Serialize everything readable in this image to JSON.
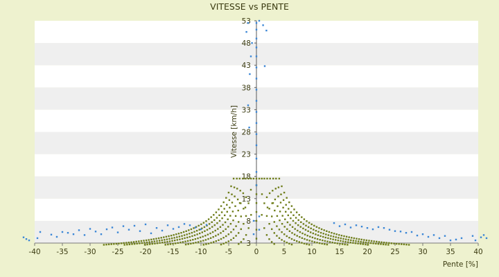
{
  "chart_data": {
    "type": "scatter",
    "title": "VITESSE vs PENTE",
    "xlabel": "Pente [%]",
    "ylabel": "Vitesse [km/h]",
    "xlim": [
      -40,
      40
    ],
    "ylim": [
      3,
      53
    ],
    "x_ticks": [
      "-40",
      "-35",
      "-30",
      "-25",
      "-20",
      "-15",
      "-10",
      "-5",
      "0",
      "5",
      "10",
      "15",
      "20",
      "25",
      "30",
      "35",
      "40"
    ],
    "y_ticks": [
      "3",
      "8",
      "13",
      "18",
      "23",
      "28",
      "33",
      "38",
      "43",
      "48",
      "53"
    ],
    "grid": "horizontal bands",
    "legend": "none",
    "colors": {
      "bands": [
        "#ffffff",
        "#efefef"
      ],
      "series_olive": "#6e7d1a",
      "series_blue": "#3a86d6",
      "background": "#eef2cf"
    },
    "series": [
      {
        "color": "#6e7d1a",
        "curves": [
          {
            "k": 9,
            "xmax": 2.4
          },
          {
            "k": 17,
            "xmax": 4.2
          },
          {
            "k": 25,
            "xmax": 6.8
          },
          {
            "k": 34,
            "xmax": 9.0
          },
          {
            "k": 43,
            "xmax": 11.5
          },
          {
            "k": 53,
            "xmax": 14.0
          },
          {
            "k": 62,
            "xmax": 16.5
          },
          {
            "k": 72,
            "xmax": 19.5
          }
        ],
        "points": [
          [
            0,
            4
          ],
          [
            0,
            6
          ],
          [
            0,
            8
          ],
          [
            0,
            10
          ],
          [
            0,
            12
          ],
          [
            0,
            14
          ],
          [
            0,
            16
          ],
          [
            0,
            17.5
          ],
          [
            -2,
            11
          ],
          [
            2,
            11
          ],
          [
            -1,
            15
          ],
          [
            1,
            14
          ],
          [
            -3,
            12
          ],
          [
            3,
            12
          ]
        ]
      },
      {
        "color": "#3a86d6",
        "points": [
          [
            -39.5,
            4.1
          ],
          [
            -39,
            5.5
          ],
          [
            -37,
            4.9
          ],
          [
            -36,
            4.4
          ],
          [
            -35,
            5.5
          ],
          [
            -34,
            5.3
          ],
          [
            -33,
            5.0
          ],
          [
            -32,
            5.9
          ],
          [
            -31,
            4.8
          ],
          [
            -30,
            6.2
          ],
          [
            -29,
            5.6
          ],
          [
            -28,
            5.0
          ],
          [
            -27,
            6.1
          ],
          [
            -26,
            6.5
          ],
          [
            -25,
            5.4
          ],
          [
            -24,
            6.8
          ],
          [
            -23,
            6.0
          ],
          [
            -22,
            6.9
          ],
          [
            -21,
            5.7
          ],
          [
            -20,
            7.2
          ],
          [
            -19,
            5.2
          ],
          [
            -18,
            6.4
          ],
          [
            -17,
            5.8
          ],
          [
            -16,
            7.0
          ],
          [
            -15,
            6.2
          ],
          [
            -14,
            6.6
          ],
          [
            -13,
            7.3
          ],
          [
            -12,
            7.0
          ],
          [
            -11,
            6.5
          ],
          [
            -10,
            6.1
          ],
          [
            -9,
            7.1
          ],
          [
            -41,
            3.6
          ],
          [
            -41.5,
            3.9
          ],
          [
            -42,
            4.3
          ],
          [
            39.5,
            3.6
          ],
          [
            39,
            4.6
          ],
          [
            37,
            4.1
          ],
          [
            36,
            3.8
          ],
          [
            35,
            3.6
          ],
          [
            34,
            4.6
          ],
          [
            33,
            4.1
          ],
          [
            32,
            4.8
          ],
          [
            31,
            4.4
          ],
          [
            30,
            5.0
          ],
          [
            29,
            4.7
          ],
          [
            28,
            5.5
          ],
          [
            27,
            5.3
          ],
          [
            26,
            5.6
          ],
          [
            25,
            5.7
          ],
          [
            24,
            6.0
          ],
          [
            23,
            6.4
          ],
          [
            22,
            6.6
          ],
          [
            21,
            6.1
          ],
          [
            20,
            6.4
          ],
          [
            19,
            6.7
          ],
          [
            18,
            7.0
          ],
          [
            17,
            6.5
          ],
          [
            16,
            7.2
          ],
          [
            15,
            6.8
          ],
          [
            14,
            7.5
          ],
          [
            40.5,
            4.3
          ],
          [
            41,
            4.8
          ],
          [
            41.5,
            4.1
          ],
          [
            0,
            16
          ],
          [
            0,
            19
          ],
          [
            0,
            22
          ],
          [
            0,
            25
          ],
          [
            0,
            27.5
          ],
          [
            0,
            30
          ],
          [
            0,
            32.5
          ],
          [
            0,
            35
          ],
          [
            0,
            37.5
          ],
          [
            0,
            40
          ],
          [
            0,
            42.5
          ],
          [
            0,
            45
          ],
          [
            0,
            47
          ],
          [
            0,
            49
          ],
          [
            0,
            51
          ],
          [
            0,
            52.5
          ],
          [
            -1.5,
            52.5
          ],
          [
            -1.8,
            50.5
          ],
          [
            -1,
            45
          ],
          [
            -1.2,
            41
          ],
          [
            -1.5,
            34
          ],
          [
            -1.3,
            29
          ],
          [
            1.8,
            50.8
          ],
          [
            1.5,
            42.8
          ],
          [
            1.2,
            52.0
          ],
          [
            -0.8,
            48
          ],
          [
            0.5,
            53
          ],
          [
            -0.5,
            8
          ],
          [
            -0.5,
            5
          ],
          [
            0.5,
            6
          ],
          [
            0.5,
            9
          ]
        ]
      }
    ]
  }
}
